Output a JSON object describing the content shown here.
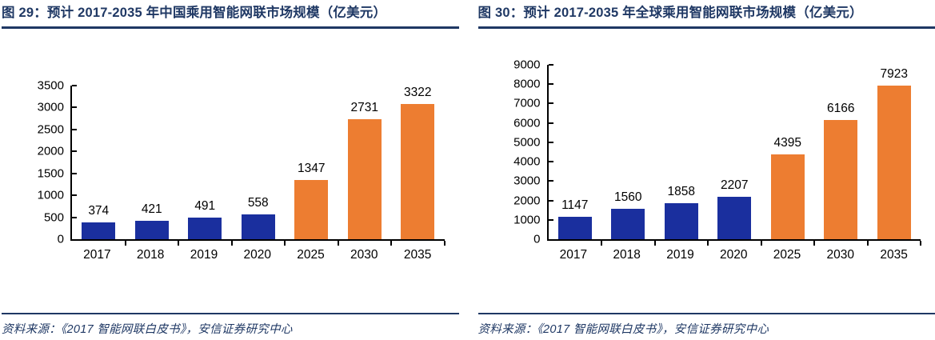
{
  "colors": {
    "title_navy": "#1F3864",
    "bar_navy": "#1A2F9E",
    "bar_orange": "#ED7D31",
    "axis_black": "#000000"
  },
  "chart_data": [
    {
      "type": "bar",
      "title": "图 29：预计 2017-2035 年中国乘用智能网联市场规模（亿美元）",
      "categories": [
        "2017",
        "2018",
        "2019",
        "2020",
        "2025",
        "2030",
        "2035"
      ],
      "values": [
        374,
        421,
        491,
        558,
        1347,
        2731,
        3322
      ],
      "bar_colors": [
        "#1A2F9E",
        "#1A2F9E",
        "#1A2F9E",
        "#1A2F9E",
        "#ED7D31",
        "#ED7D31",
        "#ED7D31"
      ],
      "ylim": [
        0,
        3500
      ],
      "yticks": [
        0,
        500,
        1000,
        1500,
        2000,
        2500,
        3000,
        3500
      ],
      "grid": false,
      "legend": "none",
      "xlabel": "",
      "ylabel": "",
      "source": "资料来源：《2017 智能网联白皮书》，安信证券研究中心"
    },
    {
      "type": "bar",
      "title": "图 30：预计 2017-2035 年全球乘用智能网联市场规模（亿美元）",
      "categories": [
        "2017",
        "2018",
        "2019",
        "2020",
        "2025",
        "2030",
        "2035"
      ],
      "values": [
        1147,
        1560,
        1858,
        2207,
        4395,
        6166,
        7923
      ],
      "bar_colors": [
        "#1A2F9E",
        "#1A2F9E",
        "#1A2F9E",
        "#1A2F9E",
        "#ED7D31",
        "#ED7D31",
        "#ED7D31"
      ],
      "ylim": [
        0,
        9000
      ],
      "yticks": [
        0,
        1000,
        2000,
        3000,
        4000,
        5000,
        6000,
        7000,
        8000,
        9000
      ],
      "grid": false,
      "legend": "none",
      "xlabel": "",
      "ylabel": "",
      "source": "资料来源：《2017 智能网联白皮书》，安信证券研究中心"
    }
  ]
}
